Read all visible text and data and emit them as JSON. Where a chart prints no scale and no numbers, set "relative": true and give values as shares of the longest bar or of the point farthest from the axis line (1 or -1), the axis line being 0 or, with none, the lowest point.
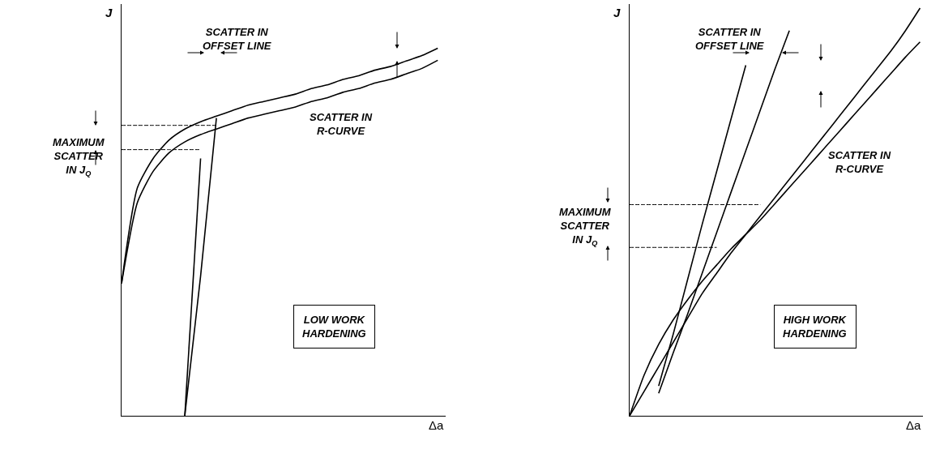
{
  "chart_data": [
    {
      "type": "line",
      "relative": true,
      "xlabel": "Δa",
      "ylabel": "J",
      "categories": [
        null,
        null,
        null,
        null,
        null,
        null,
        null,
        null,
        null,
        null,
        null,
        null,
        null,
        null,
        null,
        null,
        null,
        null,
        null,
        null,
        null
      ],
      "series": [
        {
          "color": "#000000",
          "values": [
            0.36,
            0.62,
            0.7,
            0.75,
            0.78,
            0.8,
            0.815,
            0.83,
            0.845,
            0.855,
            0.865,
            0.875,
            0.89,
            0.9,
            0.915,
            0.925,
            0.94,
            0.95,
            0.965,
            0.98,
            1.0
          ]
        },
        {
          "color": "#000000",
          "values": [
            0.36,
            0.58,
            0.665,
            0.715,
            0.745,
            0.765,
            0.78,
            0.795,
            0.81,
            0.82,
            0.83,
            0.84,
            0.855,
            0.865,
            0.88,
            0.89,
            0.905,
            0.915,
            0.93,
            0.945,
            0.967
          ]
        },
        {
          "color": "#000000",
          "values": [
            null,
            null,
            null,
            null,
            0,
            0.7,
            null,
            null,
            null,
            null,
            null,
            null,
            null,
            null,
            null,
            null,
            null,
            null,
            null,
            null,
            null
          ]
        },
        {
          "color": "#000000",
          "values": [
            null,
            null,
            null,
            null,
            0,
            0.38,
            0.81,
            null,
            null,
            null,
            null,
            null,
            null,
            null,
            null,
            null,
            null,
            null,
            null,
            null,
            null
          ]
        },
        {
          "color": "#000000",
          "line_style": "dashed",
          "values": [
            0.79,
            0.79,
            0.79,
            0.79,
            0.79,
            0.79,
            0.79,
            null,
            null,
            null,
            null,
            null,
            null,
            null,
            null,
            null,
            null,
            null,
            null,
            null,
            null
          ]
        },
        {
          "color": "#000000",
          "line_style": "dashed",
          "values": [
            0.724,
            0.724,
            0.724,
            0.724,
            0.724,
            0.724,
            null,
            null,
            null,
            null,
            null,
            null,
            null,
            null,
            null,
            null,
            null,
            null,
            null,
            null,
            null
          ]
        }
      ],
      "annotations": [
        "SCATTER IN\nOFFSET LINE",
        "MAXIMUM\nSCATTER\nIN J$_{Q}$",
        "SCATTER IN\nR-CURVE",
        "LOW WORK\nHARDENING"
      ]
    },
    {
      "type": "line",
      "relative": true,
      "xlabel": "Δa",
      "ylabel": "J",
      "categories": [
        null,
        null,
        null,
        null,
        null,
        null,
        null,
        null,
        null,
        null,
        null,
        null,
        null,
        null,
        null,
        null,
        null,
        null,
        null,
        null,
        null
      ],
      "series": [
        {
          "color": "#000000",
          "values": [
            0,
            0.06,
            0.12,
            0.18,
            0.24,
            0.3,
            0.35,
            0.4,
            0.445,
            0.49,
            0.535,
            0.58,
            0.625,
            0.67,
            0.715,
            0.76,
            0.805,
            0.85,
            0.895,
            0.945,
            1.0
          ]
        },
        {
          "color": "#000000",
          "values": [
            0,
            0.1,
            0.175,
            0.235,
            0.285,
            0.33,
            0.37,
            0.41,
            0.445,
            0.48,
            0.52,
            0.56,
            0.6,
            0.64,
            0.68,
            0.72,
            0.76,
            0.8,
            0.84,
            0.88,
            0.917
          ]
        },
        {
          "color": "#000000",
          "values": [
            null,
            null,
            0.073,
            0.2,
            0.335,
            0.47,
            0.6,
            0.73,
            0.86,
            null,
            null,
            null,
            null,
            null,
            null,
            null,
            null,
            null,
            null,
            null,
            null
          ]
        },
        {
          "color": "#000000",
          "values": [
            null,
            null,
            0.055,
            0.154,
            0.25,
            0.35,
            0.45,
            0.55,
            0.65,
            0.75,
            0.85,
            0.945,
            null,
            null,
            null,
            null,
            null,
            null,
            null,
            null,
            null
          ]
        },
        {
          "color": "#000000",
          "line_style": "dashed",
          "values": [
            0.518,
            0.518,
            0.518,
            0.518,
            0.518,
            0.518,
            0.518,
            0.518,
            0.518,
            0.518,
            null,
            null,
            null,
            null,
            null,
            null,
            null,
            null,
            null,
            null,
            null
          ]
        },
        {
          "color": "#000000",
          "line_style": "dashed",
          "values": [
            0.413,
            0.413,
            0.413,
            0.413,
            0.413,
            0.413,
            0.413,
            null,
            null,
            null,
            null,
            null,
            null,
            null,
            null,
            null,
            null,
            null,
            null,
            null,
            null
          ]
        }
      ],
      "annotations": [
        "SCATTER IN\nOFFSET LINE",
        "MAXIMUM\nSCATTER\nIN J$_{Q}$",
        "SCATTER IN\nR-CURVE",
        "HIGH WORK\nHARDENING"
      ]
    }
  ]
}
